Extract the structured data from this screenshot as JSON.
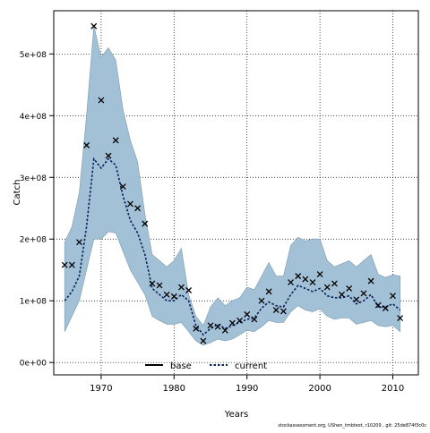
{
  "chart_data": {
    "type": "line",
    "xlabel": "Years",
    "ylabel": "Catch",
    "footer": "stockassessment.org, UShen_tmbtest, r10209 , git: 25de874f3c0c",
    "xlim": [
      1963.5,
      2013.5
    ],
    "ylim": [
      -20000000,
      570000000
    ],
    "x_ticks": [
      1970,
      1980,
      1990,
      2000,
      2010
    ],
    "x_tick_labels": [
      "1970",
      "1980",
      "1990",
      "2000",
      "2010"
    ],
    "y_ticks": [
      0,
      100000000,
      200000000,
      300000000,
      400000000,
      500000000
    ],
    "y_tick_labels": [
      "0e+00",
      "1e+08",
      "2e+08",
      "3e+08",
      "4e+08",
      "5e+08"
    ],
    "grid": true,
    "legend": {
      "placement": "bottom",
      "items": [
        "base",
        "current"
      ]
    },
    "years": [
      1965,
      1966,
      1967,
      1968,
      1969,
      1970,
      1971,
      1972,
      1973,
      1974,
      1975,
      1976,
      1977,
      1978,
      1979,
      1980,
      1981,
      1982,
      1983,
      1984,
      1985,
      1986,
      1987,
      1988,
      1989,
      1990,
      1991,
      1992,
      1993,
      1994,
      1995,
      1996,
      1997,
      1998,
      1999,
      2000,
      2001,
      2002,
      2003,
      2004,
      2005,
      2006,
      2007,
      2008,
      2009,
      2010,
      2011
    ],
    "observed": [
      158000000,
      158000000,
      195000000,
      352000000,
      545000000,
      425000000,
      335000000,
      360000000,
      285000000,
      257000000,
      250000000,
      225000000,
      128000000,
      125000000,
      110000000,
      107000000,
      122000000,
      117000000,
      55000000,
      35000000,
      60000000,
      58000000,
      52000000,
      64000000,
      68000000,
      78000000,
      70000000,
      100000000,
      115000000,
      85000000,
      83000000,
      130000000,
      140000000,
      135000000,
      130000000,
      143000000,
      122000000,
      128000000,
      110000000,
      120000000,
      102000000,
      112000000,
      132000000,
      93000000,
      88000000,
      108000000,
      72000000
    ],
    "series": [
      {
        "name": "current",
        "values": [
          100000000,
          115000000,
          140000000,
          220000000,
          330000000,
          315000000,
          330000000,
          320000000,
          270000000,
          230000000,
          210000000,
          175000000,
          120000000,
          110000000,
          100000000,
          100000000,
          110000000,
          100000000,
          60000000,
          45000000,
          55000000,
          62000000,
          55000000,
          60000000,
          65000000,
          70000000,
          72000000,
          88000000,
          98000000,
          92000000,
          90000000,
          110000000,
          125000000,
          120000000,
          115000000,
          120000000,
          108000000,
          105000000,
          105000000,
          108000000,
          95000000,
          100000000,
          110000000,
          90000000,
          90000000,
          95000000,
          85000000
        ]
      },
      {
        "name": "upper",
        "values": [
          195000000,
          220000000,
          275000000,
          400000000,
          545000000,
          495000000,
          510000000,
          490000000,
          410000000,
          360000000,
          325000000,
          240000000,
          175000000,
          165000000,
          155000000,
          165000000,
          185000000,
          110000000,
          75000000,
          60000000,
          90000000,
          105000000,
          92000000,
          100000000,
          105000000,
          122000000,
          118000000,
          140000000,
          162000000,
          140000000,
          140000000,
          190000000,
          203000000,
          197000000,
          200000000,
          200000000,
          165000000,
          155000000,
          160000000,
          165000000,
          155000000,
          165000000,
          175000000,
          143000000,
          138000000,
          142000000,
          140000000
        ]
      },
      {
        "name": "lower",
        "values": [
          50000000,
          75000000,
          100000000,
          150000000,
          200000000,
          200000000,
          212000000,
          210000000,
          180000000,
          150000000,
          130000000,
          110000000,
          75000000,
          68000000,
          62000000,
          62000000,
          65000000,
          50000000,
          35000000,
          28000000,
          32000000,
          38000000,
          35000000,
          38000000,
          45000000,
          52000000,
          50000000,
          58000000,
          68000000,
          65000000,
          65000000,
          82000000,
          92000000,
          85000000,
          82000000,
          87000000,
          75000000,
          70000000,
          72000000,
          72000000,
          62000000,
          65000000,
          68000000,
          60000000,
          58000000,
          60000000,
          50000000
        ]
      }
    ],
    "colors": {
      "band": "#a3c1d6",
      "band_edge": "#7a9aaf",
      "current_line": "#0a1f5c",
      "base_line": "#000000",
      "grid": "#000000"
    }
  }
}
